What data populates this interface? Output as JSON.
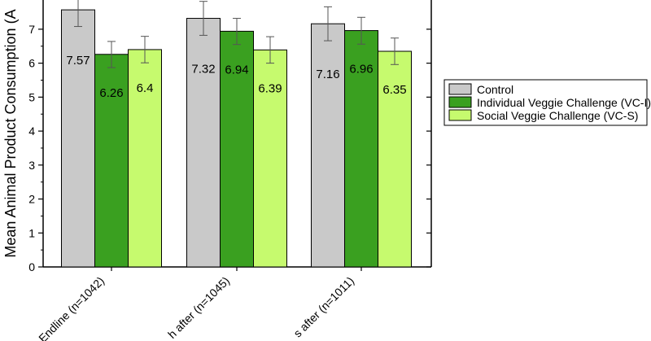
{
  "chart_data": {
    "type": "bar",
    "title": "",
    "xlabel": "",
    "ylabel": "Mean Animal Product Consumption (A",
    "ylim": [
      0,
      7.86
    ],
    "yticks": [
      0,
      1,
      2,
      3,
      4,
      5,
      6,
      7
    ],
    "categories": [
      "Endline (n=1042)",
      "h after (n=1045)",
      "s after (n=1011)"
    ],
    "series": [
      {
        "name": "Control",
        "color": "#c9c9c9",
        "values": [
          7.57,
          7.32,
          7.16
        ],
        "labels": [
          "7.57",
          "7.32",
          "7.16"
        ],
        "error_low": [
          7.08,
          6.82,
          6.66
        ],
        "error_high": [
          8.05,
          7.82,
          7.66
        ]
      },
      {
        "name": "Individual Veggie Challenge (VC-I)",
        "color": "#3aa020",
        "values": [
          6.26,
          6.94,
          6.96
        ],
        "labels": [
          "6.26",
          "6.94",
          "6.96"
        ],
        "error_low": [
          5.87,
          6.55,
          6.56
        ],
        "error_high": [
          6.64,
          7.32,
          7.35
        ]
      },
      {
        "name": "Social Veggie Challenge (VC-S)",
        "color": "#c6fa6e",
        "values": [
          6.4,
          6.39,
          6.35
        ],
        "labels": [
          "6.4",
          "6.39",
          "6.35"
        ],
        "error_low": [
          6.01,
          6.0,
          5.96
        ],
        "error_high": [
          6.79,
          6.78,
          6.74
        ]
      }
    ],
    "legend": {
      "position": "right",
      "entries": [
        "Control",
        "Individual Veggie Challenge (VC-I)",
        "Social Veggie Challenge (VC-S)"
      ]
    }
  }
}
